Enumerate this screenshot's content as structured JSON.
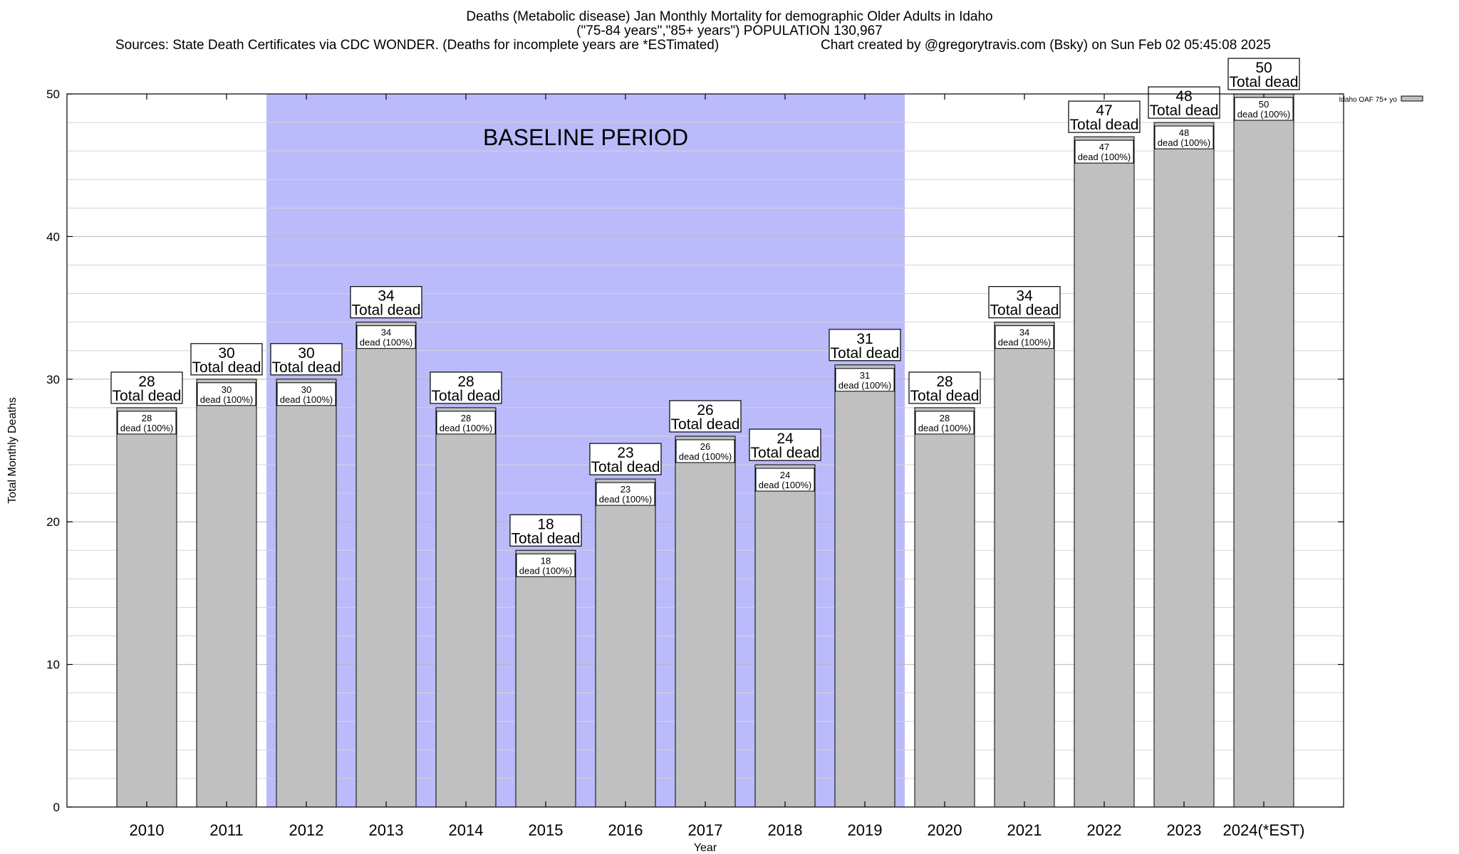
{
  "title_line_1": "Deaths (Metabolic disease) Jan Monthly Mortality for demographic Older Adults in Idaho",
  "title_line_2": "(\"75-84 years\",\"85+ years\") POPULATION 130,967",
  "sources": "Sources: State Death Certificates via CDC WONDER. (Deaths for incomplete years are *ESTimated)",
  "credit": "Chart created by @gregorytravis.com (Bsky) on Sun Feb 02 05:45:08 2025",
  "colors": {
    "bar": "#c0c0c0",
    "baseline": "#bbbbfb",
    "grid": "#d4d4d4"
  },
  "chart_data": {
    "type": "bar",
    "title": "Deaths (Metabolic disease) Jan Monthly Mortality for demographic Older Adults in Idaho",
    "xlabel": "Year",
    "ylabel": "Total Monthly Deaths",
    "ylim": [
      0,
      50
    ],
    "yticks": [
      0,
      10,
      20,
      30,
      40,
      50
    ],
    "grid": true,
    "legend_position": "top-right",
    "categories": [
      "2010",
      "2011",
      "2012",
      "2013",
      "2014",
      "2015",
      "2016",
      "2017",
      "2018",
      "2019",
      "2020",
      "2021",
      "2022",
      "2023",
      "2024(*EST)"
    ],
    "series": [
      {
        "name": "Idaho OAF 75+ yo",
        "values": [
          28,
          30,
          30,
          34,
          28,
          18,
          23,
          26,
          24,
          31,
          28,
          34,
          47,
          48,
          50
        ]
      }
    ],
    "top_label_suffix": "Total dead",
    "inner_label_suffix": "dead (100%)",
    "baseline_period": {
      "label": "BASELINE PERIOD",
      "from": "2012",
      "to": "2019"
    }
  }
}
